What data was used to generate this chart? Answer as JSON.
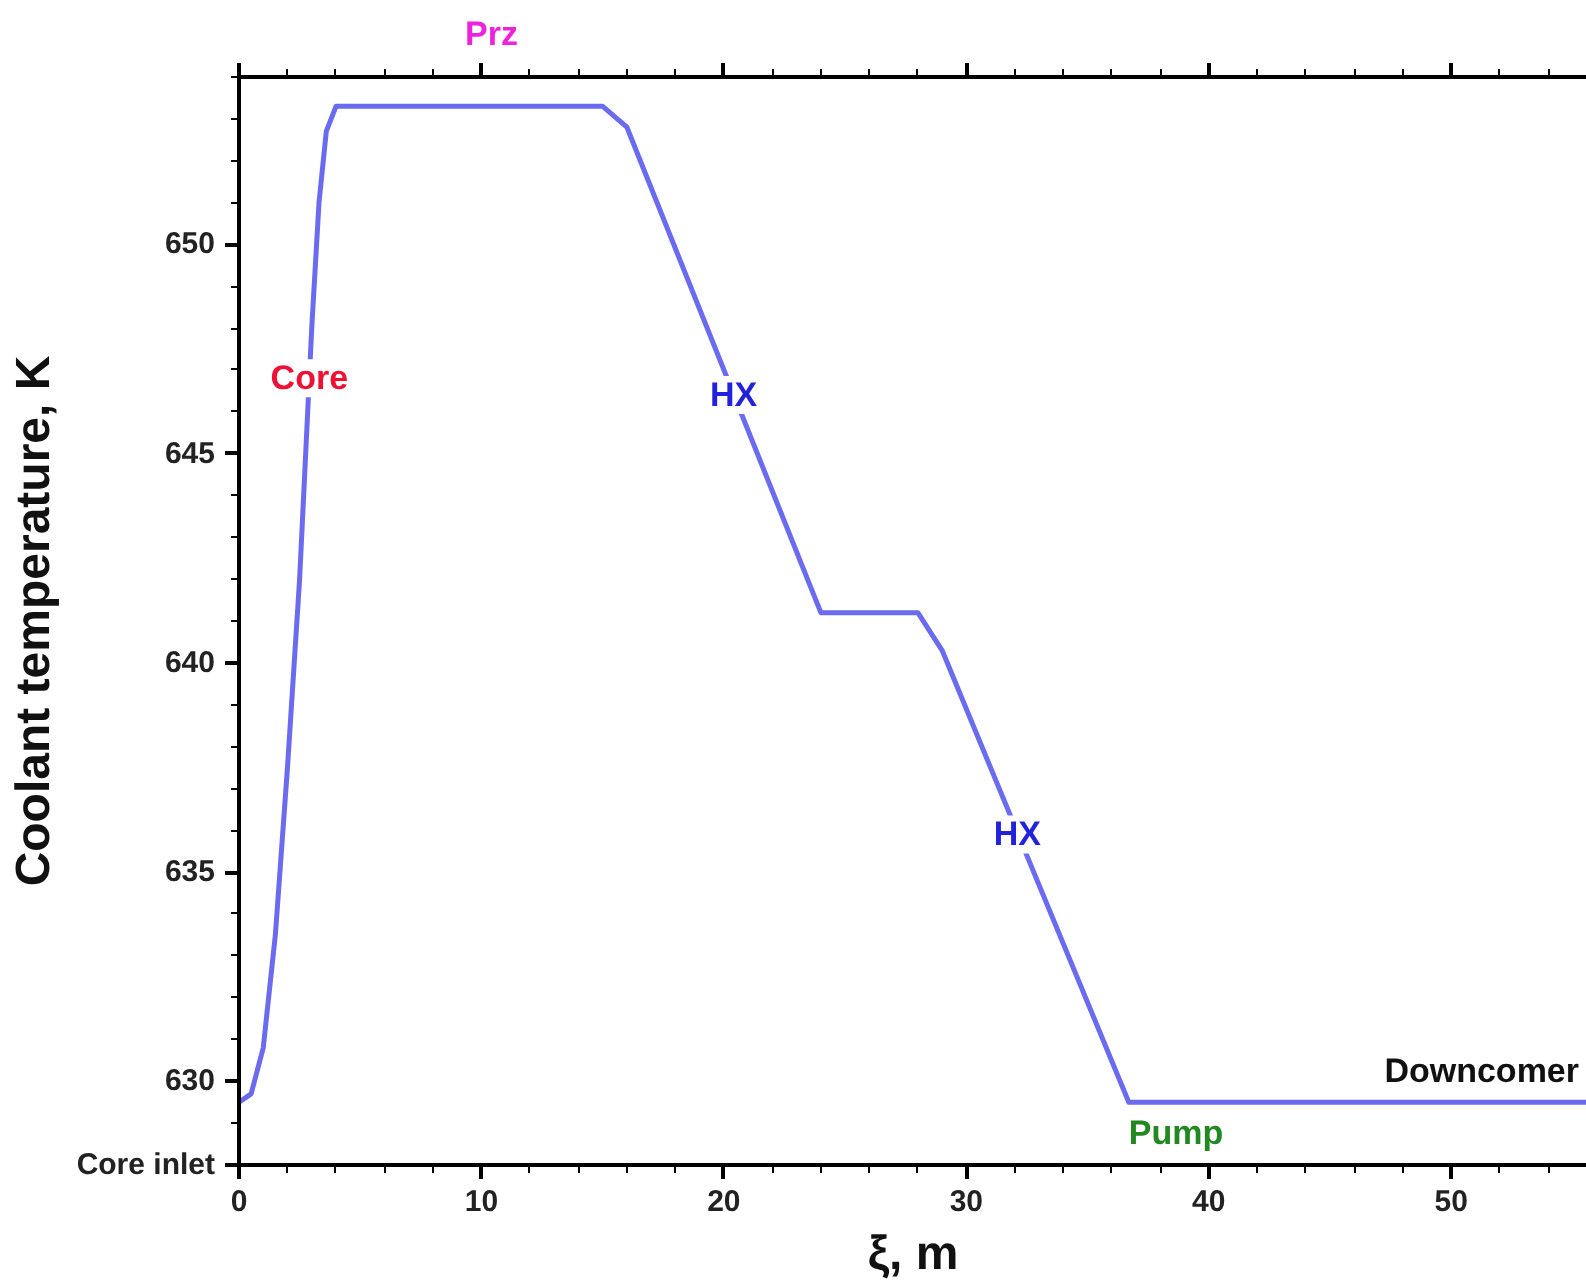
{
  "chart_data": {
    "type": "line",
    "xlabel": "ξ, m",
    "ylabel": "Coolant temperature, K",
    "x": [
      0,
      0.5,
      1,
      1.5,
      2,
      2.5,
      3,
      3.3,
      3.6,
      4,
      15,
      16,
      24,
      28,
      29,
      36.7,
      55.6
    ],
    "series": [
      {
        "color": "#6b6bf0",
        "values": [
          629.5,
          629.7,
          630.8,
          633.5,
          637.5,
          642,
          648,
          651,
          652.7,
          653.3,
          653.3,
          652.8,
          641.2,
          641.2,
          640.3,
          629.5,
          629.5
        ]
      }
    ],
    "xlim": [
      0,
      55.6
    ],
    "ylim": [
      628,
      654
    ],
    "xticks": [
      0,
      10,
      20,
      30,
      40,
      50
    ],
    "yticks": [
      {
        "value": 628,
        "label": "Core inlet"
      },
      630,
      635,
      640,
      645,
      650
    ],
    "grid": false,
    "line_style": "solid",
    "annotations": [
      "Prz",
      {
        "text": "Core",
        "x": 2.9,
        "y": 646.8
      },
      {
        "text": "HX",
        "x": 20.4,
        "y": 646.4
      },
      {
        "text": "HX",
        "x": 32.1,
        "y": 635.9
      },
      {
        "text": "Pump",
        "x": 36.7,
        "y": 629.5
      },
      {
        "text": "Downcomer",
        "x": 55.6,
        "y": 629.5
      }
    ]
  }
}
